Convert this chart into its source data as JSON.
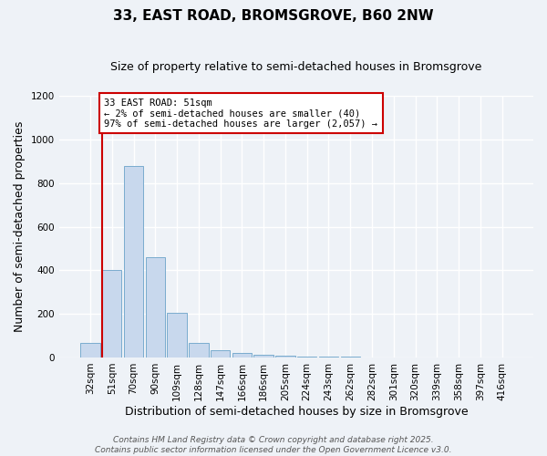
{
  "title": "33, EAST ROAD, BROMSGROVE, B60 2NW",
  "subtitle": "Size of property relative to semi-detached houses in Bromsgrove",
  "xlabel": "Distribution of semi-detached houses by size in Bromsgrove",
  "ylabel": "Number of semi-detached properties",
  "categories": [
    "32sqm",
    "51sqm",
    "70sqm",
    "90sqm",
    "109sqm",
    "128sqm",
    "147sqm",
    "166sqm",
    "186sqm",
    "205sqm",
    "224sqm",
    "243sqm",
    "262sqm",
    "282sqm",
    "301sqm",
    "320sqm",
    "339sqm",
    "358sqm",
    "397sqm",
    "416sqm"
  ],
  "values": [
    65,
    400,
    880,
    460,
    205,
    65,
    35,
    22,
    12,
    7,
    4,
    3,
    2,
    1,
    1,
    0,
    0,
    0,
    0,
    0
  ],
  "bar_color": "#c8d8ed",
  "bar_edge_color": "#7aacce",
  "vline_bar_index": 1,
  "vline_color": "#cc0000",
  "ylim": [
    0,
    1200
  ],
  "yticks": [
    0,
    200,
    400,
    600,
    800,
    1000,
    1200
  ],
  "annotation_title": "33 EAST ROAD: 51sqm",
  "annotation_line1": "← 2% of semi-detached houses are smaller (40)",
  "annotation_line2": "97% of semi-detached houses are larger (2,057) →",
  "annotation_box_color": "#ffffff",
  "annotation_box_edge": "#cc0000",
  "footer_line1": "Contains HM Land Registry data © Crown copyright and database right 2025.",
  "footer_line2": "Contains public sector information licensed under the Open Government Licence v3.0.",
  "background_color": "#eef2f7",
  "grid_color": "#ffffff",
  "title_fontsize": 11,
  "subtitle_fontsize": 9,
  "axis_label_fontsize": 9,
  "tick_fontsize": 7.5,
  "annotation_fontsize": 7.5,
  "footer_fontsize": 6.5
}
